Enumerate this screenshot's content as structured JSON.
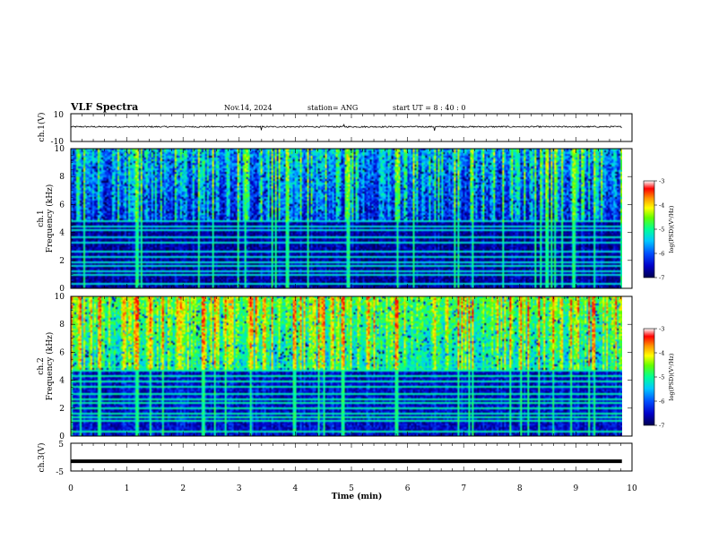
{
  "header": {
    "title": "VLF Spectra",
    "date": "Nov.14, 2024",
    "station": "station= ANG",
    "start": "start  UT  =   8  : 40 : 0"
  },
  "colors": {
    "background": "#ffffff",
    "frame": "#000000",
    "colormap": [
      "#000050",
      "#0000c8",
      "#0050ff",
      "#00c8ff",
      "#00ff96",
      "#64ff00",
      "#ffff00",
      "#ff9600",
      "#ff0000",
      "#ffffff"
    ]
  },
  "chart_data": [
    {
      "type": "line",
      "panel": "ch1",
      "ylabel": "ch.1(V)",
      "ylim": [
        -10,
        10
      ],
      "yticks": [
        "10",
        "-10"
      ],
      "xlim": [
        0,
        10
      ],
      "description_values": {
        "baseline": 0.6,
        "noise": 0.5
      },
      "spikes": [
        {
          "x": 3.4,
          "y": -1.9
        },
        {
          "x": 4.87,
          "y": 2.2
        },
        {
          "x": 6.48,
          "y": -2.2
        }
      ]
    },
    {
      "type": "heatmap",
      "panel": "ch1-spectrogram",
      "ylabel": "Frequency (kHz)",
      "channel_label": "ch.1",
      "xlim": [
        0,
        10
      ],
      "data_xmax": 9.82,
      "ylim": [
        0,
        10
      ],
      "yticks": [
        "0",
        "2",
        "4",
        "6",
        "8",
        "10"
      ],
      "zlabel": "log(PSD)(V²/Hz)",
      "zlim": [
        -7,
        -3
      ],
      "zticks": [
        "-3",
        "-4",
        "-5",
        "-6",
        "-7"
      ],
      "upper_band_level": -5.6,
      "lower_band_level": -6.8,
      "hum_lines_khz": [
        0.3,
        0.9,
        1.2,
        1.5,
        1.8,
        2.25,
        2.55,
        3.3,
        3.7,
        4.1,
        4.45,
        4.75
      ]
    },
    {
      "type": "heatmap",
      "panel": "ch2-spectrogram",
      "ylabel": "Frequency (kHz)",
      "channel_label": "ch.2",
      "xlim": [
        0,
        10
      ],
      "data_xmax": 9.82,
      "ylim": [
        0,
        10
      ],
      "yticks": [
        "0",
        "2",
        "4",
        "6",
        "8",
        "10"
      ],
      "zlabel": "log(PSD)(V²/Hz)",
      "zlim": [
        -7,
        -3
      ],
      "zticks": [
        "-3",
        "-4",
        "-5",
        "-6",
        "-7"
      ],
      "upper_band_level": -4.6,
      "lower_band_level": -6.6,
      "hum_lines_khz": [
        0.3,
        1.0,
        1.3,
        1.6,
        2.0,
        2.3,
        2.6,
        3.0,
        3.5,
        3.9,
        4.3,
        4.7,
        5.0
      ]
    },
    {
      "type": "line",
      "panel": "ch3",
      "ylabel": "ch.3(V)",
      "ylim": [
        -5,
        5
      ],
      "yticks": [
        "5",
        "-5"
      ],
      "xlim": [
        0,
        10
      ],
      "level": -1.5
    }
  ],
  "xaxis": {
    "label": "Time  (min)",
    "ticks": [
      "0",
      "1",
      "2",
      "3",
      "4",
      "5",
      "6",
      "7",
      "8",
      "9",
      "10"
    ]
  }
}
